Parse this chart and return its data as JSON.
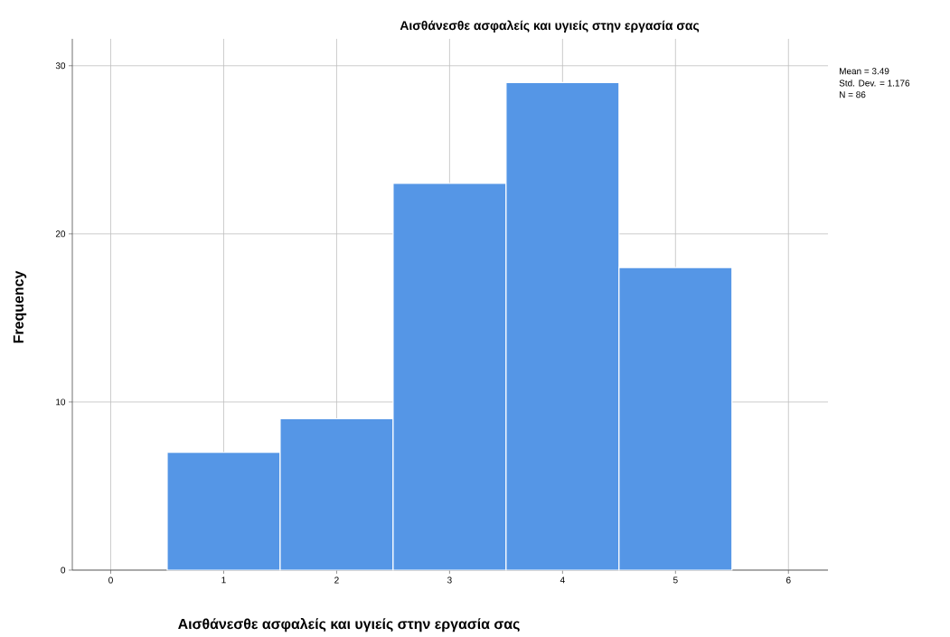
{
  "chart_data": {
    "type": "histogram",
    "title": "Αισθάνεσθε ασφαλείς και υγιείς στην εργασία σας",
    "xlabel": "Αισθάνεσθε ασφαλείς και υγιείς στην εργασία σας",
    "ylabel": "Frequency",
    "bins": [
      0.5,
      1.5,
      2.5,
      3.5,
      4.5,
      5.5
    ],
    "values": [
      7,
      9,
      23,
      29,
      18
    ],
    "color": "#5596e6",
    "xlim": [
      -0.34,
      6.35
    ],
    "ylim": [
      0,
      31.6
    ],
    "xticks": [
      0,
      1,
      2,
      3,
      4,
      5,
      6
    ],
    "yticks": [
      0,
      10,
      20,
      30
    ],
    "grid": true,
    "annotations": [
      "Mean = 3.49",
      "Std. Dev. = 1.176",
      "N = 86"
    ]
  }
}
